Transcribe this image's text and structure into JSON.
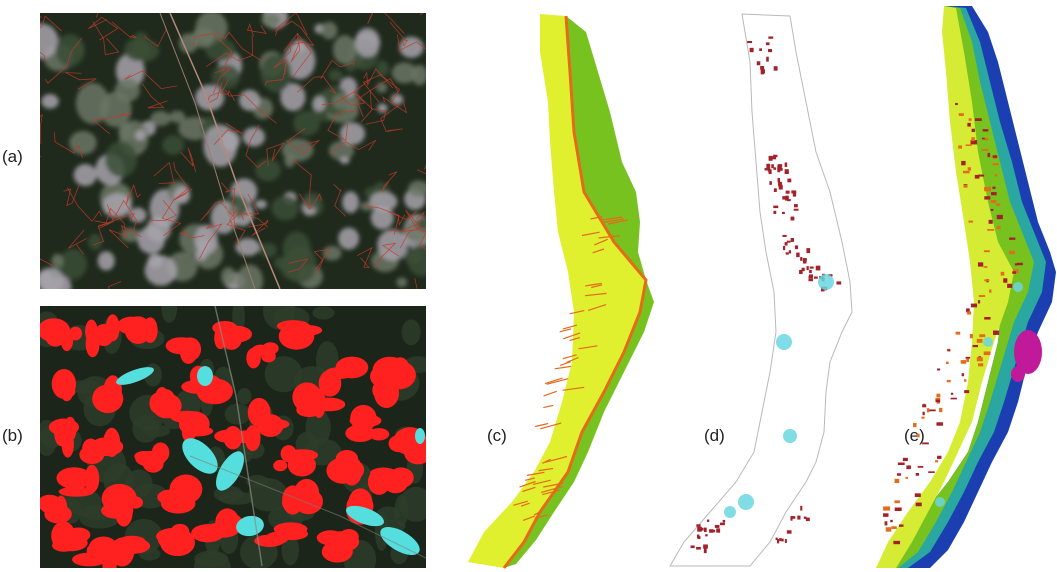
{
  "figure": {
    "panels": [
      {
        "id": "a",
        "label": "(a)"
      },
      {
        "id": "b",
        "label": "(b)"
      },
      {
        "id": "c",
        "label": "(c)"
      },
      {
        "id": "d",
        "label": "(d)"
      },
      {
        "id": "e",
        "label": "(e)"
      }
    ]
  },
  "colors": {
    "forest_dark": "#1f2a1c",
    "bare_patch": "#9c9aa0",
    "boundary_red": "#c0392b",
    "classified_red": "#ff2020",
    "classified_cyan": "#55dede",
    "zone_yellow": "#e0ef2e",
    "zone_green": "#78c21f",
    "zone_orange": "#e36b1a",
    "change_darkred": "#a3222a",
    "change_cyan": "#6ad6e0",
    "shore_blue": "#1b3fb0",
    "shore_teal": "#2aa7a0",
    "magenta": "#c01a9a"
  }
}
